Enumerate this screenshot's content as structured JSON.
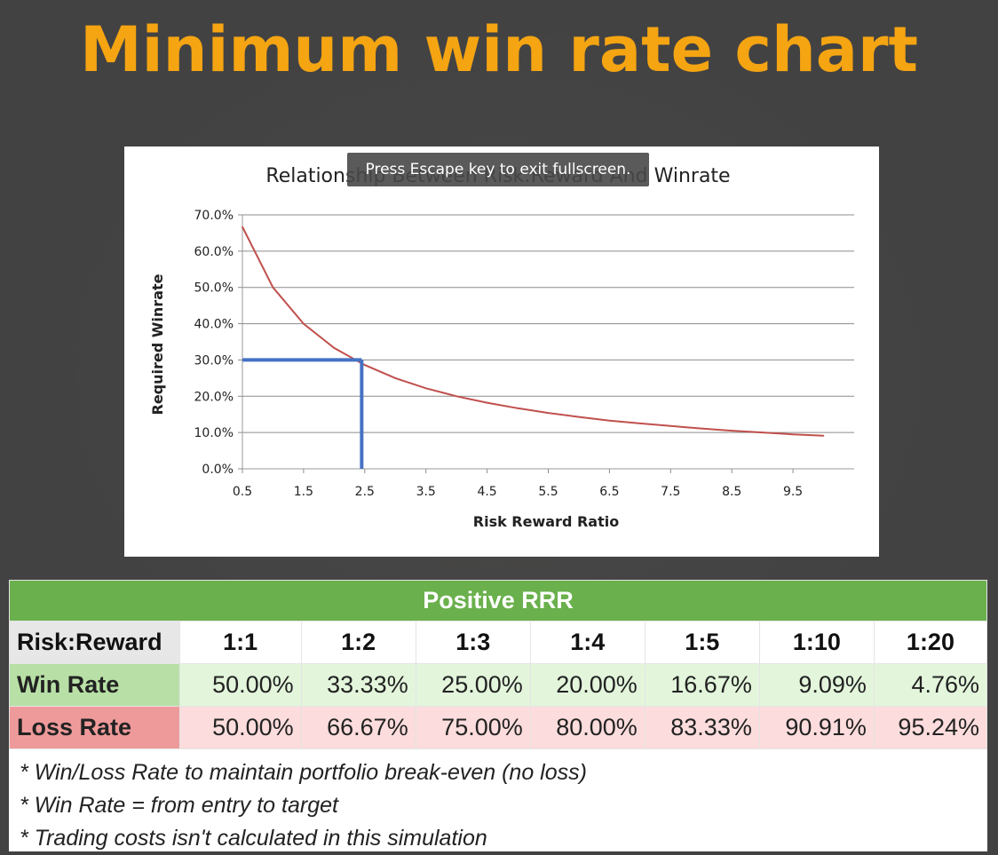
{
  "page": {
    "title": "Minimum win rate chart",
    "title_color": "#f5a412"
  },
  "overlay": {
    "fullscreen_message": "Press Escape key to exit fullscreen."
  },
  "chart_data": {
    "type": "line",
    "title": "Relationship Between Risk:Reward And Winrate",
    "xlabel": "Risk Reward Ratio",
    "ylabel": "Required  Winrate",
    "xlim": [
      0.5,
      10.5
    ],
    "ylim": [
      0,
      70
    ],
    "x_ticks": [
      "0.5",
      "1.5",
      "2.5",
      "3.5",
      "4.5",
      "5.5",
      "6.5",
      "7.5",
      "8.5",
      "9.5"
    ],
    "y_ticks": [
      "0.0%",
      "10.0%",
      "20.0%",
      "30.0%",
      "40.0%",
      "50.0%",
      "60.0%",
      "70.0%"
    ],
    "grid": true,
    "series": [
      {
        "color": "#c0504d",
        "x": [
          0.5,
          1,
          1.5,
          2,
          2.5,
          3,
          3.5,
          4,
          4.5,
          5,
          5.5,
          6,
          6.5,
          7,
          7.5,
          8,
          8.5,
          9,
          9.5,
          10
        ],
        "y": [
          66.7,
          50.0,
          40.0,
          33.3,
          28.6,
          25.0,
          22.2,
          20.0,
          18.2,
          16.7,
          15.4,
          14.3,
          13.3,
          12.5,
          11.8,
          11.1,
          10.5,
          10.0,
          9.5,
          9.1
        ]
      }
    ],
    "annotation": {
      "color": "#4472c4",
      "x": 2.45,
      "y": 30
    }
  },
  "table": {
    "title": "Positive RRR",
    "header_label": "Risk:Reward",
    "ratios": [
      "1:1",
      "1:2",
      "1:3",
      "1:4",
      "1:5",
      "1:10",
      "1:20"
    ],
    "win_label": "Win Rate",
    "win_rates": [
      "50.00%",
      "33.33%",
      "25.00%",
      "20.00%",
      "16.67%",
      "9.09%",
      "4.76%"
    ],
    "loss_label": "Loss Rate",
    "loss_rates": [
      "50.00%",
      "66.67%",
      "75.00%",
      "80.00%",
      "83.33%",
      "90.91%",
      "95.24%"
    ],
    "notes": [
      "* Win/Loss Rate to maintain portfolio break-even (no loss)",
      "* Win Rate = from entry to target",
      "* Trading costs isn't calculated in this simulation"
    ],
    "header_color": "#6ab04c"
  }
}
